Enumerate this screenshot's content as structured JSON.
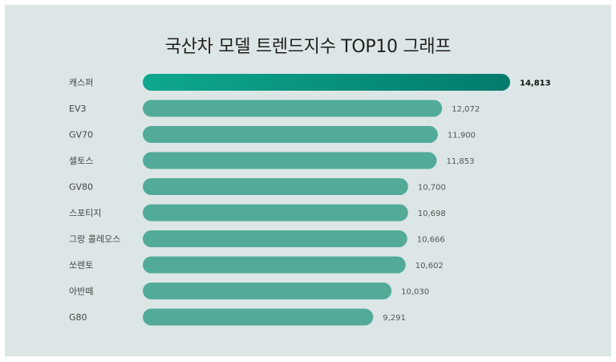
{
  "chart_data": {
    "type": "bar",
    "orientation": "horizontal",
    "title": "국산차 모델 트렌드지수 TOP10 그래프",
    "categories": [
      "캐스퍼",
      "EV3",
      "GV70",
      "셀토스",
      "GV80",
      "스포티지",
      "그랑 콜레오스",
      "쏘렌토",
      "아반떼",
      "G80"
    ],
    "values": [
      14813,
      12072,
      11900,
      11853,
      10700,
      10698,
      10666,
      10602,
      10030,
      9291
    ],
    "value_labels": [
      "14,813",
      "12,072",
      "11,900",
      "11,853",
      "10,700",
      "10,698",
      "10,666",
      "10,602",
      "10,030",
      "9,291"
    ],
    "xlim": [
      0,
      14813
    ],
    "grid": false,
    "legend": "none",
    "colors": {
      "bar": "#52ab99",
      "top_bar_start": "#0ea88d",
      "top_bar_end": "#037b6c",
      "background": "#dde6e7"
    }
  }
}
